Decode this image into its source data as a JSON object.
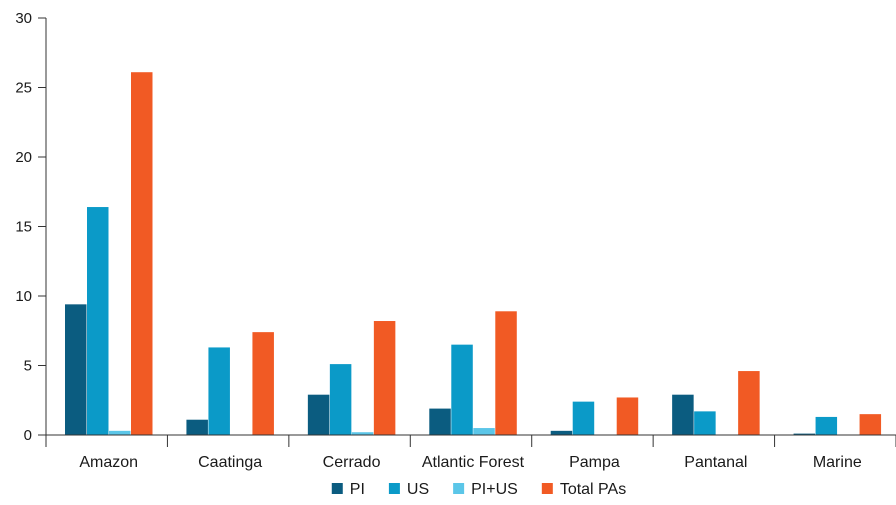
{
  "chart_data": {
    "type": "bar",
    "title": "",
    "xlabel": "",
    "ylabel": "",
    "ylim": [
      0,
      30
    ],
    "yticks": [
      0,
      5,
      10,
      15,
      20,
      25,
      30
    ],
    "grid": false,
    "legend_position": "bottom",
    "categories": [
      "Amazon",
      "Caatinga",
      "Cerrado",
      "Atlantic Forest",
      "Pampa",
      "Pantanal",
      "Marine"
    ],
    "series": [
      {
        "name": "PI",
        "color": "#0b5c80",
        "values": [
          9.4,
          1.1,
          2.9,
          1.9,
          0.3,
          2.9,
          0.1
        ]
      },
      {
        "name": "US",
        "color": "#0b9ac8",
        "values": [
          16.4,
          6.3,
          5.1,
          6.5,
          2.4,
          1.7,
          1.3
        ]
      },
      {
        "name": "PI+US",
        "color": "#5bc6e8",
        "values": [
          0.3,
          0.0,
          0.2,
          0.5,
          0.0,
          0.0,
          0.0
        ]
      },
      {
        "name": "Total PAs",
        "color": "#f15a24",
        "values": [
          26.1,
          7.4,
          8.2,
          8.9,
          2.7,
          4.6,
          1.5
        ]
      }
    ]
  }
}
